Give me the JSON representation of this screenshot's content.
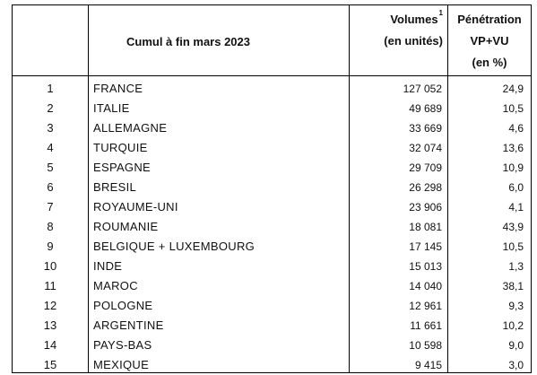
{
  "table": {
    "header": {
      "rank": "",
      "country": "Cumul à fin mars 2023",
      "volume_line1": "Volumes",
      "volume_note": "1",
      "volume_line2": "(en unités)",
      "penetration_line1": "Pénétration",
      "penetration_line2": "VP+VU",
      "penetration_line3": "(en %)"
    },
    "rows": [
      {
        "rank": "1",
        "country": "FRANCE",
        "volume": "127 052",
        "penetration": "24,9"
      },
      {
        "rank": "2",
        "country": "ITALIE",
        "volume": "49 689",
        "penetration": "10,5"
      },
      {
        "rank": "3",
        "country": "ALLEMAGNE",
        "volume": "33 669",
        "penetration": "4,6"
      },
      {
        "rank": "4",
        "country": "TURQUIE",
        "volume": "32 074",
        "penetration": "13,6"
      },
      {
        "rank": "5",
        "country": "ESPAGNE",
        "volume": "29 709",
        "penetration": "10,9"
      },
      {
        "rank": "6",
        "country": "BRESIL",
        "volume": "26 298",
        "penetration": "6,0"
      },
      {
        "rank": "7",
        "country": "ROYAUME-UNI",
        "volume": "23 906",
        "penetration": "4,1"
      },
      {
        "rank": "8",
        "country": "ROUMANIE",
        "volume": "18 081",
        "penetration": "43,9"
      },
      {
        "rank": "9",
        "country": "BELGIQUE + LUXEMBOURG",
        "volume": "17 145",
        "penetration": "10,5"
      },
      {
        "rank": "10",
        "country": "INDE",
        "volume": "15 013",
        "penetration": "1,3"
      },
      {
        "rank": "11",
        "country": "MAROC",
        "volume": "14 040",
        "penetration": "38,1"
      },
      {
        "rank": "12",
        "country": "POLOGNE",
        "volume": "12 961",
        "penetration": "9,3"
      },
      {
        "rank": "13",
        "country": "ARGENTINE",
        "volume": "11 661",
        "penetration": "10,2"
      },
      {
        "rank": "14",
        "country": "PAYS-BAS",
        "volume": "10 598",
        "penetration": "9,0"
      },
      {
        "rank": "15",
        "country": "MEXIQUE",
        "volume": "9 415",
        "penetration": "3,0"
      }
    ]
  }
}
